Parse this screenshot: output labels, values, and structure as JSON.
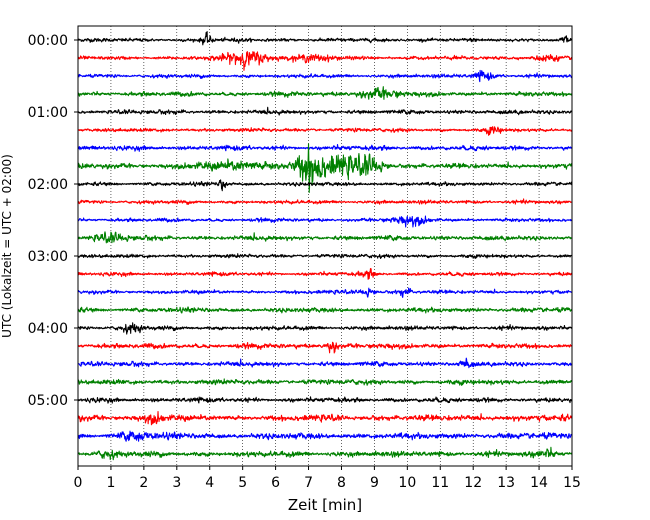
{
  "chart_data": {
    "type": "line",
    "title": "",
    "xlabel": "Zeit  [min]",
    "ylabel": "UTC (Lokalzeit = UTC + 02:00)",
    "xlim": [
      0,
      15
    ],
    "x_ticks": [
      "0",
      "1",
      "2",
      "3",
      "4",
      "5",
      "6",
      "7",
      "8",
      "9",
      "10",
      "11",
      "12",
      "13",
      "14",
      "15"
    ],
    "y_tick_labels": [
      "00:00",
      "01:00",
      "02:00",
      "03:00",
      "04:00",
      "05:00"
    ],
    "grid": "vertical dotted",
    "trace_interval_minutes": 15,
    "trace_colors": [
      "#000000",
      "#ff0000",
      "#0000ff",
      "#008000"
    ],
    "series": [
      {
        "start": "00:00",
        "color": "#000000",
        "noise": 0.16,
        "events": [
          {
            "t": 3.9,
            "amp": 0.55,
            "dur": 0.15
          },
          {
            "t": 14.8,
            "amp": 0.5,
            "dur": 0.12
          }
        ]
      },
      {
        "start": "00:15",
        "color": "#ff0000",
        "noise": 0.16,
        "events": [
          {
            "t": 5.1,
            "amp": 0.8,
            "dur": 0.6
          },
          {
            "t": 7.0,
            "amp": 0.25,
            "dur": 0.8
          },
          {
            "t": 14.2,
            "amp": 0.4,
            "dur": 0.3
          }
        ]
      },
      {
        "start": "00:30",
        "color": "#0000ff",
        "noise": 0.16,
        "events": [
          {
            "t": 12.3,
            "amp": 0.45,
            "dur": 0.3
          }
        ]
      },
      {
        "start": "00:45",
        "color": "#008000",
        "noise": 0.2,
        "events": [
          {
            "t": 9.1,
            "amp": 0.45,
            "dur": 0.6
          }
        ]
      },
      {
        "start": "01:00",
        "color": "#000000",
        "noise": 0.18,
        "events": []
      },
      {
        "start": "01:15",
        "color": "#ff0000",
        "noise": 0.16,
        "events": [
          {
            "t": 12.6,
            "amp": 0.4,
            "dur": 0.2
          }
        ]
      },
      {
        "start": "01:30",
        "color": "#0000ff",
        "noise": 0.2,
        "events": []
      },
      {
        "start": "01:45",
        "color": "#008000",
        "noise": 0.22,
        "events": [
          {
            "t": 5.0,
            "amp": 0.35,
            "dur": 1.5
          },
          {
            "t": 7.05,
            "amp": 2.2,
            "dur": 0.35
          },
          {
            "t": 8.0,
            "amp": 0.9,
            "dur": 0.7
          },
          {
            "t": 8.9,
            "amp": 0.7,
            "dur": 0.4
          }
        ]
      },
      {
        "start": "02:00",
        "color": "#000000",
        "noise": 0.16,
        "events": [
          {
            "t": 4.4,
            "amp": 0.55,
            "dur": 0.1
          }
        ]
      },
      {
        "start": "02:15",
        "color": "#ff0000",
        "noise": 0.16,
        "events": []
      },
      {
        "start": "02:30",
        "color": "#0000ff",
        "noise": 0.16,
        "events": [
          {
            "t": 10.1,
            "amp": 0.45,
            "dur": 0.5
          }
        ]
      },
      {
        "start": "02:45",
        "color": "#008000",
        "noise": 0.2,
        "events": [
          {
            "t": 1.0,
            "amp": 0.35,
            "dur": 0.5
          }
        ]
      },
      {
        "start": "03:00",
        "color": "#000000",
        "noise": 0.16,
        "events": []
      },
      {
        "start": "03:15",
        "color": "#ff0000",
        "noise": 0.16,
        "events": [
          {
            "t": 8.8,
            "amp": 0.4,
            "dur": 0.2
          }
        ]
      },
      {
        "start": "03:30",
        "color": "#0000ff",
        "noise": 0.16,
        "events": [
          {
            "t": 8.8,
            "amp": 0.4,
            "dur": 0.2
          },
          {
            "t": 9.9,
            "amp": 0.35,
            "dur": 0.2
          }
        ]
      },
      {
        "start": "03:45",
        "color": "#008000",
        "noise": 0.2,
        "events": []
      },
      {
        "start": "04:00",
        "color": "#000000",
        "noise": 0.18,
        "events": [
          {
            "t": 1.6,
            "amp": 0.4,
            "dur": 0.3
          }
        ]
      },
      {
        "start": "04:15",
        "color": "#ff0000",
        "noise": 0.22,
        "events": [
          {
            "t": 7.7,
            "amp": 0.5,
            "dur": 0.2
          }
        ]
      },
      {
        "start": "04:30",
        "color": "#0000ff",
        "noise": 0.2,
        "events": [
          {
            "t": 11.8,
            "amp": 0.5,
            "dur": 0.15
          }
        ]
      },
      {
        "start": "04:45",
        "color": "#008000",
        "noise": 0.22,
        "events": []
      },
      {
        "start": "05:00",
        "color": "#000000",
        "noise": 0.2,
        "events": []
      },
      {
        "start": "05:15",
        "color": "#ff0000",
        "noise": 0.26,
        "events": [
          {
            "t": 2.3,
            "amp": 0.45,
            "dur": 0.3
          }
        ]
      },
      {
        "start": "05:30",
        "color": "#0000ff",
        "noise": 0.26,
        "events": [
          {
            "t": 1.7,
            "amp": 0.4,
            "dur": 0.4
          }
        ]
      },
      {
        "start": "05:45",
        "color": "#008000",
        "noise": 0.24,
        "events": [
          {
            "t": 0.9,
            "amp": 0.35,
            "dur": 0.3
          },
          {
            "t": 14.2,
            "amp": 0.35,
            "dur": 0.3
          }
        ]
      }
    ]
  }
}
